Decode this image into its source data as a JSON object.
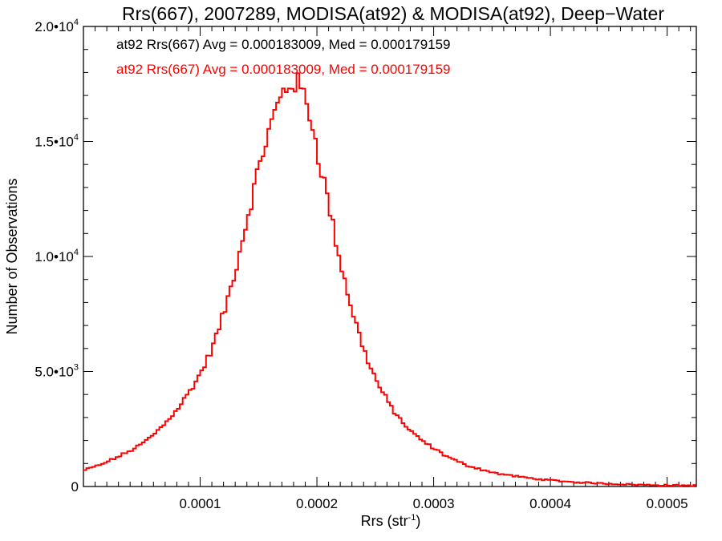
{
  "chart_data": {
    "type": "line",
    "style": "step-histogram",
    "title": "Rrs(667), 2007289, MODISA(at92) & MODISA(at92), Deep−Water",
    "xlabel_main": "Rrs (str",
    "xlabel_sup": "-1",
    "xlabel_close": ")",
    "ylabel": "Number of Observations",
    "xlim": [
      0.0,
      0.000525
    ],
    "ylim": [
      0,
      20000
    ],
    "x_ticks": [
      {
        "value": 0.0001,
        "label": "0.0001"
      },
      {
        "value": 0.0002,
        "label": "0.0002"
      },
      {
        "value": 0.0003,
        "label": "0.0003"
      },
      {
        "value": 0.0004,
        "label": "0.0004"
      },
      {
        "value": 0.0005,
        "label": "0.0005"
      }
    ],
    "y_ticks": [
      {
        "value": 0,
        "label": "0",
        "exp": ""
      },
      {
        "value": 5000,
        "label": "5.0•10",
        "exp": "3"
      },
      {
        "value": 10000,
        "label": "1.0•10",
        "exp": "4"
      },
      {
        "value": 15000,
        "label": "1.5•10",
        "exp": "4"
      },
      {
        "value": 20000,
        "label": "2.0•10",
        "exp": "4"
      }
    ],
    "legend": [
      {
        "text": "at92 Rrs(667) Avg = 0.000183009, Med = 0.000179159",
        "color": "#000000"
      },
      {
        "text": "at92 Rrs(667) Avg = 0.000183009, Med = 0.000179159",
        "color": "#ff0000"
      }
    ],
    "legend_position": "top-left",
    "series": [
      {
        "name": "at92 Rrs(667)",
        "color": "#ff0000",
        "x": [
          0.0,
          1.5e-05,
          3e-05,
          4e-05,
          5e-05,
          6e-05,
          7e-05,
          8e-05,
          9e-05,
          0.0001,
          0.000105,
          0.00011,
          0.000115,
          0.00012,
          0.000125,
          0.00013,
          0.000135,
          0.00014,
          0.000145,
          0.00015,
          0.000155,
          0.00016,
          0.000163,
          0.000166,
          0.000169,
          0.000172,
          0.000175,
          0.000178,
          0.00018,
          0.000182,
          0.000185,
          0.000188,
          0.000191,
          0.000194,
          0.000197,
          0.0002,
          0.000205,
          0.00021,
          0.000215,
          0.00022,
          0.000225,
          0.00023,
          0.000235,
          0.00024,
          0.000245,
          0.00025,
          0.000255,
          0.00026,
          0.000265,
          0.00027,
          0.000275,
          0.00028,
          0.00029,
          0.0003,
          0.00031,
          0.00032,
          0.00033,
          0.00034,
          0.00035,
          0.00036,
          0.00038,
          0.0004,
          0.00042,
          0.00045,
          0.00048,
          0.000525
        ],
        "values": [
          700,
          950,
          1300,
          1550,
          1850,
          2250,
          2750,
          3350,
          4050,
          4900,
          5400,
          6000,
          6700,
          7500,
          8400,
          9400,
          10500,
          11600,
          12700,
          13800,
          14800,
          15600,
          16100,
          16500,
          16900,
          17200,
          17400,
          17550,
          17600,
          17550,
          17400,
          17100,
          16700,
          16200,
          15500,
          14700,
          13500,
          12300,
          11000,
          9800,
          8700,
          7700,
          6800,
          6000,
          5300,
          4700,
          4200,
          3750,
          3350,
          3000,
          2700,
          2400,
          2000,
          1650,
          1350,
          1100,
          900,
          750,
          620,
          520,
          380,
          270,
          190,
          120,
          70,
          40
        ]
      }
    ]
  }
}
